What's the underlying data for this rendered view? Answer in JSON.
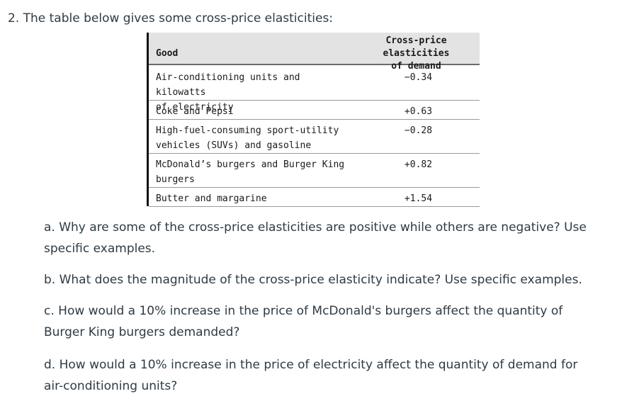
{
  "question": {
    "title": "2. The table below gives some cross-price elasticities:"
  },
  "table": {
    "col_good": "Good",
    "col_elasticity_line1": "Cross-price elasticities",
    "col_elasticity_line2": "of demand",
    "rows": [
      {
        "good_line1": "Air-conditioning units and kilowatts",
        "good_line2": "of electricity",
        "value": "−0.34"
      },
      {
        "good_line1": "Coke and Pepsi",
        "good_line2": "",
        "value": "+0.63"
      },
      {
        "good_line1": "High-fuel-consuming sport-utility",
        "good_line2": "vehicles (SUVs) and gasoline",
        "value": "−0.28"
      },
      {
        "good_line1": "McDonald’s burgers and Burger King",
        "good_line2": "burgers",
        "value": "+0.82"
      },
      {
        "good_line1": "Butter and margarine",
        "good_line2": "",
        "value": "+1.54"
      }
    ]
  },
  "parts": {
    "a_line1": "a. Why are some of the cross-price elasticities are positive while others are negative?  Use",
    "a_line2": "specific examples.",
    "b": "b. What does the magnitude of the cross-price elasticity indicate?  Use specific examples.",
    "c_line1": "c. How would a 10% increase in the price of McDonald's burgers affect the quantity of",
    "c_line2": "Burger King burgers demanded?",
    "d_line1": "d. How would a 10% increase in the price of electricity affect the quantity of demand for",
    "d_line2": "air-conditioning units?"
  }
}
